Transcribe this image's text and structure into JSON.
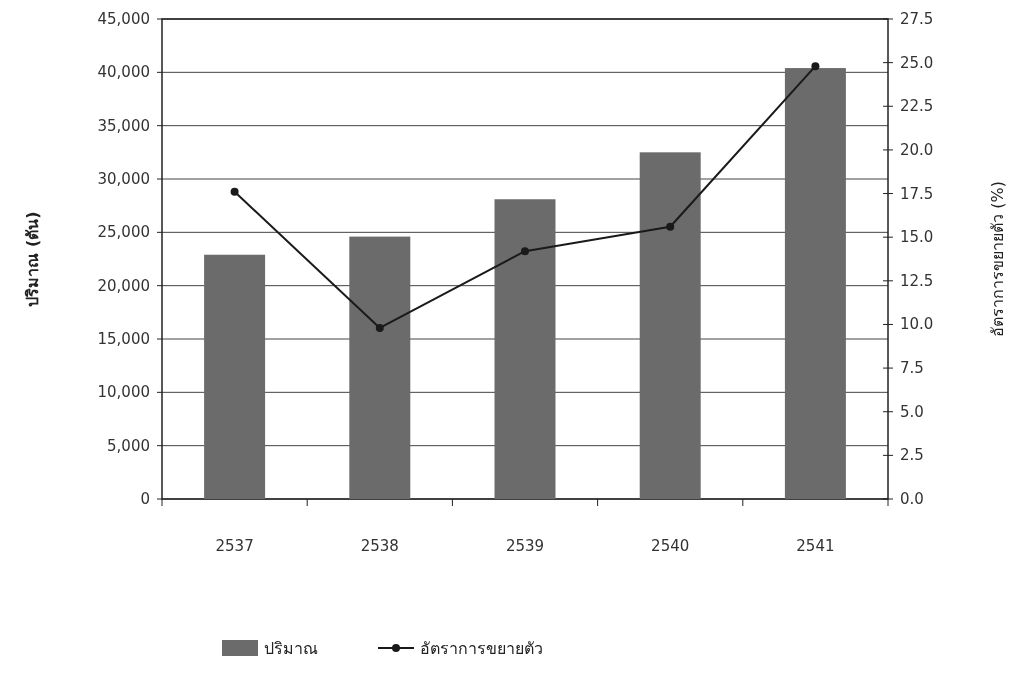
{
  "chart_data": {
    "type": "bar",
    "ylabel": "ปริมาณ (ตัน)",
    "y2label": "อัตราการขยายตัว (%)",
    "categories": [
      "2537",
      "2538",
      "2539",
      "2540",
      "2541"
    ],
    "series": [
      {
        "name": "ปริมาณ",
        "color": "#6b6b6b",
        "values": [
          22900,
          24600,
          28100,
          32500,
          40400
        ]
      },
      {
        "name": "อัตราการขยายตัว",
        "type": "line",
        "axis": "y2",
        "color": "#1a1a1a",
        "marker": "circle",
        "values": [
          17.6,
          9.8,
          14.2,
          15.6,
          24.8
        ]
      }
    ],
    "ylim": [
      0,
      45000
    ],
    "yticks": [
      {
        "value": 0,
        "label": "0"
      },
      {
        "value": 5000,
        "label": "5,000"
      },
      {
        "value": 10000,
        "label": "10,000"
      },
      {
        "value": 15000,
        "label": "15,000"
      },
      {
        "value": 20000,
        "label": "20,000"
      },
      {
        "value": 25000,
        "label": "25,000"
      },
      {
        "value": 30000,
        "label": "30,000"
      },
      {
        "value": 35000,
        "label": "35,000"
      },
      {
        "value": 40000,
        "label": "40,000"
      },
      {
        "value": 45000,
        "label": "45,000"
      }
    ],
    "y2lim": [
      0,
      27.5
    ],
    "y2ticks": [
      {
        "value": 0,
        "label": "0.0"
      },
      {
        "value": 2.5,
        "label": "2.5"
      },
      {
        "value": 5,
        "label": "5.0"
      },
      {
        "value": 7.5,
        "label": "7.5"
      },
      {
        "value": 10,
        "label": "10.0"
      },
      {
        "value": 12.5,
        "label": "12.5"
      },
      {
        "value": 15,
        "label": "15.0"
      },
      {
        "value": 17.5,
        "label": "17.5"
      },
      {
        "value": 20,
        "label": "20.0"
      },
      {
        "value": 22.5,
        "label": "22.5"
      },
      {
        "value": 25,
        "label": "25.0"
      },
      {
        "value": 27.5,
        "label": "27.5"
      }
    ],
    "grid": "y",
    "legend": "bottom"
  }
}
